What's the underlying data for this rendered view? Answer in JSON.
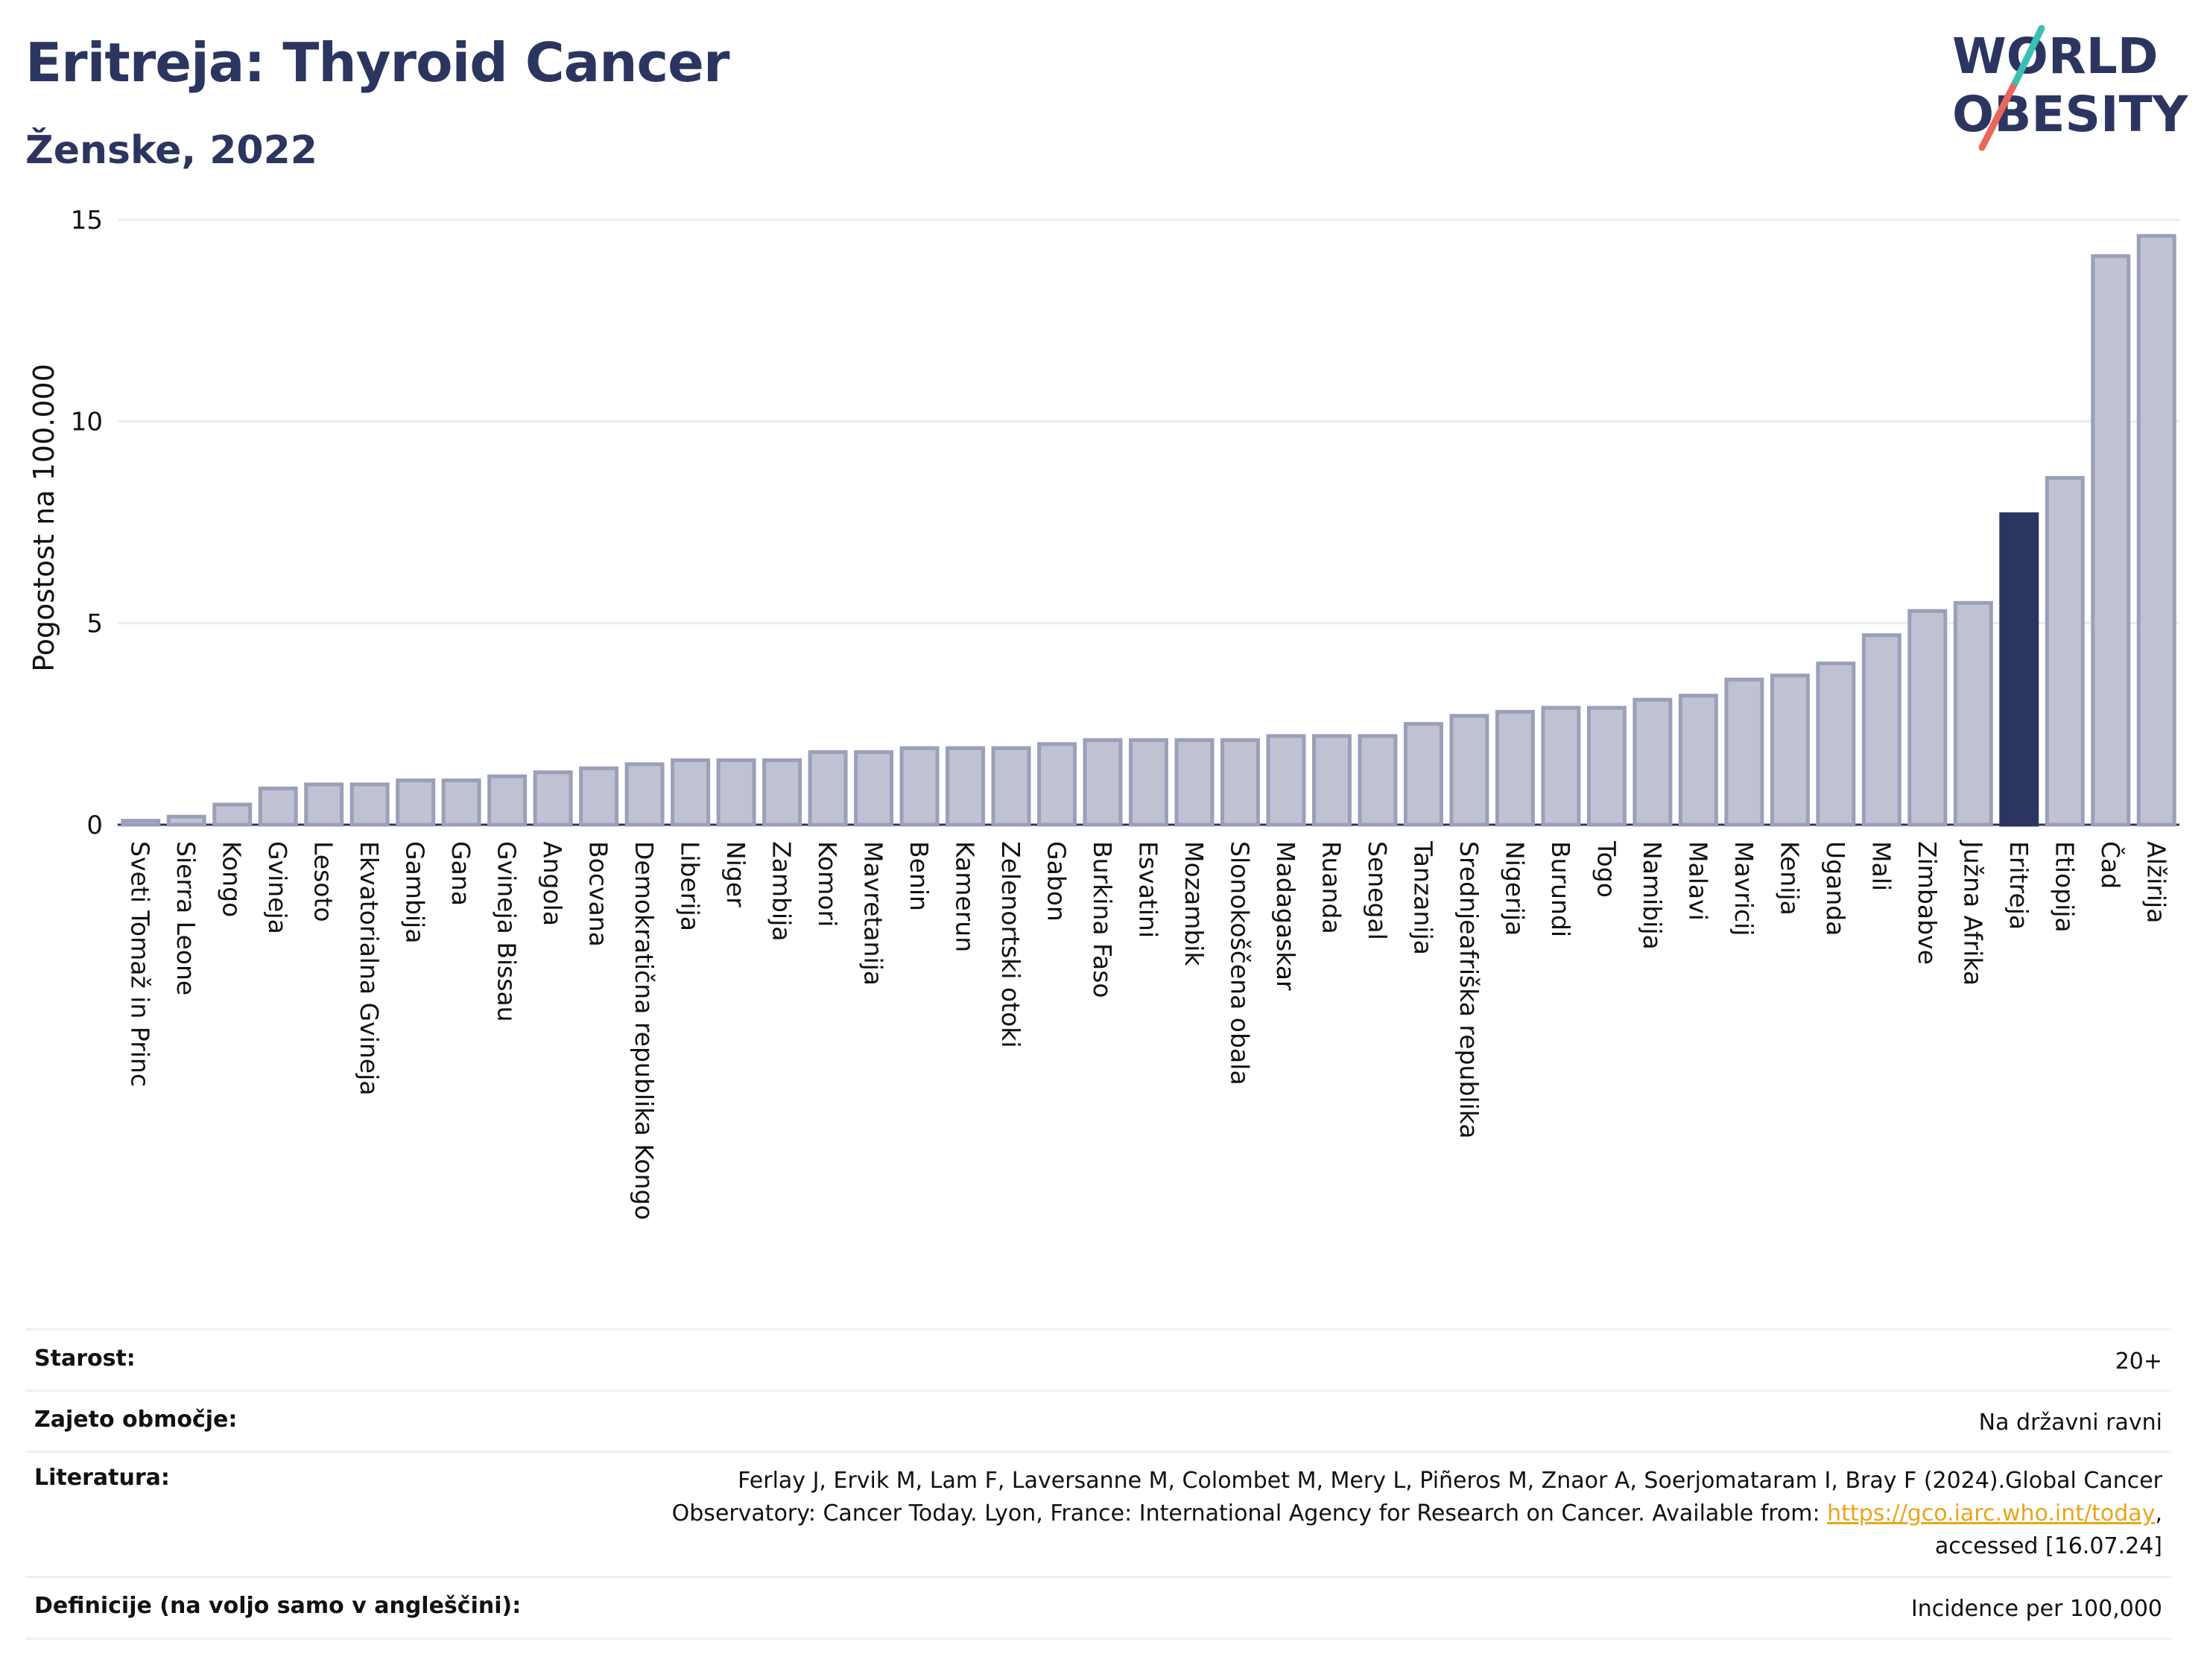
{
  "header": {
    "title": "Eritreja: Thyroid Cancer",
    "subtitle": "Ženske, 2022"
  },
  "logo": {
    "line1": "WORLD",
    "line2": "OBESITY",
    "colors": [
      "#2b3560",
      "#e8665a",
      "#3bbfb4"
    ]
  },
  "colors": {
    "bar": "#bec2d2",
    "bar_stroke": "#9aa0b8",
    "highlight": "#2b3560",
    "grid": "#e9ebf0",
    "link": "#e8a51b"
  },
  "chart_data": {
    "type": "bar",
    "title": "Eritreja: Thyroid Cancer",
    "subtitle": "Ženske, 2022",
    "ylabel": "Pogostost na 100.000",
    "ylim": [
      0,
      15
    ],
    "yticks": [
      0,
      5,
      10,
      15
    ],
    "highlight": "Eritreja",
    "categories": [
      "Sveti Tomaž in Princ",
      "Sierra Leone",
      "Kongo",
      "Gvineja",
      "Lesoto",
      "Ekvatorialna Gvineja",
      "Gambija",
      "Gana",
      "Gvineja Bissau",
      "Angola",
      "Bocvana",
      "Demokratična republika Kongo",
      "Liberija",
      "Niger",
      "Zambija",
      "Komori",
      "Mavretanija",
      "Benin",
      "Kamerun",
      "Zelenortski otoki",
      "Gabon",
      "Burkina Faso",
      "Esvatini",
      "Mozambik",
      "Slonokoščena obala",
      "Madagaskar",
      "Ruanda",
      "Senegal",
      "Tanzanija",
      "Srednjeafriška republika",
      "Nigerija",
      "Burundi",
      "Togo",
      "Namibija",
      "Malavi",
      "Mavricij",
      "Kenija",
      "Uganda",
      "Mali",
      "Zimbabve",
      "Južna Afrika",
      "Eritreja",
      "Etiopija",
      "Čad",
      "Alžirija"
    ],
    "values": [
      0.1,
      0.2,
      0.5,
      0.9,
      1.0,
      1.0,
      1.1,
      1.1,
      1.2,
      1.3,
      1.4,
      1.5,
      1.6,
      1.6,
      1.6,
      1.8,
      1.8,
      1.9,
      1.9,
      1.9,
      2.0,
      2.1,
      2.1,
      2.1,
      2.1,
      2.2,
      2.2,
      2.2,
      2.5,
      2.7,
      2.8,
      2.9,
      2.9,
      3.1,
      3.2,
      3.6,
      3.7,
      4.0,
      4.7,
      5.3,
      5.5,
      7.7,
      8.6,
      14.1,
      14.6
    ]
  },
  "table": [
    {
      "key": "Starost:",
      "value": "20+"
    },
    {
      "key": "Zajeto območje:",
      "value": "Na državni ravni"
    },
    {
      "key": "Literatura:",
      "value_line1": "Ferlay J, Ervik M, Lam F, Laversanne M, Colombet M, Mery L, Piñeros M, Znaor A, Soerjomataram I, Bray F (2024).Global Cancer",
      "value_line2_pre": "Observatory: Cancer Today. Lyon, France: International Agency for Research on Cancer. Available from: ",
      "value_link": "https://gco.iarc.who.int/today",
      "value_line2_post": ",",
      "value_line3": "accessed [16.07.24]"
    },
    {
      "key": "Definicije (na voljo samo v angleščini):",
      "value": "Incidence per 100,000"
    }
  ]
}
